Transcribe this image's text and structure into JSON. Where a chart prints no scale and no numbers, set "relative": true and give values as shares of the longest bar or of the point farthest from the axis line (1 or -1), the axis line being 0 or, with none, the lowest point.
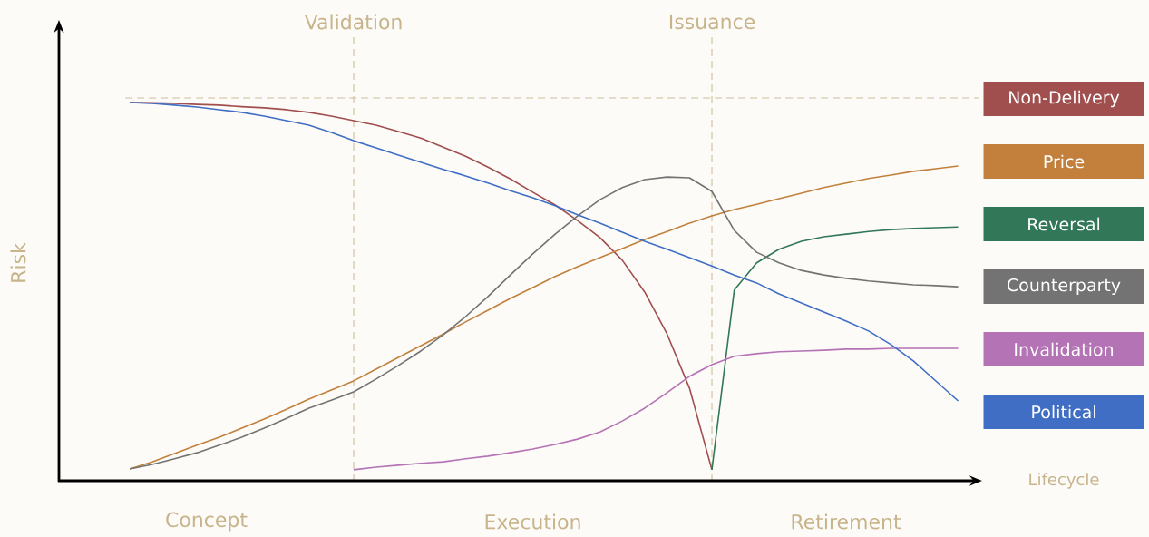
{
  "chart_data": {
    "type": "line",
    "relative": true,
    "xlabel": "Lifecycle",
    "ylabel": "Risk",
    "marker": "none",
    "categories": [
      null,
      null,
      null,
      null,
      null,
      null,
      null,
      null,
      null,
      null,
      null,
      null,
      null,
      null,
      null,
      null,
      null,
      null,
      null,
      null,
      null,
      null,
      null,
      null,
      null,
      null,
      null,
      null,
      null,
      null,
      null,
      null,
      null,
      null,
      null,
      null,
      null,
      null
    ],
    "ref_lines": [
      {
        "axis": "y",
        "value": 1.012,
        "color": "#cdbf9a",
        "line_style": "dashed"
      }
    ],
    "annotations": [
      "Validation",
      "Issuance",
      "Concept",
      "Execution",
      "Retirement"
    ],
    "series": [
      {
        "name": "Non-Delivery",
        "color": "#a04e4e",
        "values": [
          1.0,
          0.999,
          0.998,
          0.995,
          0.993,
          0.989,
          0.986,
          0.981,
          0.974,
          0.964,
          0.952,
          0.94,
          0.923,
          0.906,
          0.882,
          0.858,
          0.829,
          0.798,
          0.763,
          0.729,
          0.688,
          0.643,
          0.583,
          0.499,
          0.388,
          0.245,
          0.029,
          null,
          null,
          null,
          null,
          null,
          null,
          null,
          null,
          null,
          null,
          null
        ]
      },
      {
        "name": "Price",
        "color": "#c2803c",
        "values": [
          0.031,
          0.05,
          0.072,
          0.094,
          0.115,
          0.139,
          0.163,
          0.189,
          0.216,
          0.24,
          0.264,
          0.295,
          0.326,
          0.357,
          0.388,
          0.42,
          0.451,
          0.482,
          0.511,
          0.54,
          0.566,
          0.59,
          0.614,
          0.638,
          0.659,
          0.681,
          0.7,
          0.717,
          0.731,
          0.746,
          0.76,
          0.775,
          0.787,
          0.799,
          0.808,
          0.818,
          0.825,
          0.832
        ]
      },
      {
        "name": "Reversal",
        "color": "#327858",
        "values": [
          null,
          null,
          null,
          null,
          null,
          null,
          null,
          null,
          null,
          null,
          null,
          null,
          null,
          null,
          null,
          null,
          null,
          null,
          null,
          null,
          null,
          null,
          null,
          null,
          null,
          null,
          0.029,
          0.504,
          0.576,
          0.612,
          0.633,
          0.645,
          0.652,
          0.659,
          0.664,
          0.667,
          0.669,
          0.671
        ]
      },
      {
        "name": "Counterparty",
        "color": "#737373",
        "values": [
          0.031,
          0.043,
          0.058,
          0.074,
          0.094,
          0.115,
          0.139,
          0.165,
          0.192,
          0.213,
          0.235,
          0.269,
          0.305,
          0.343,
          0.386,
          0.434,
          0.487,
          0.544,
          0.6,
          0.652,
          0.7,
          0.743,
          0.775,
          0.796,
          0.803,
          0.801,
          0.765,
          0.662,
          0.604,
          0.576,
          0.556,
          0.544,
          0.535,
          0.528,
          0.523,
          0.518,
          0.516,
          0.513
        ]
      },
      {
        "name": "Invalidation",
        "color": "#b473b4",
        "values": [
          null,
          null,
          null,
          null,
          null,
          null,
          null,
          null,
          null,
          null,
          0.029,
          0.036,
          0.041,
          0.046,
          0.05,
          0.058,
          0.065,
          0.074,
          0.084,
          0.096,
          0.11,
          0.129,
          0.158,
          0.192,
          0.233,
          0.276,
          0.307,
          0.329,
          0.336,
          0.341,
          0.343,
          0.345,
          0.348,
          0.348,
          0.35,
          0.35,
          0.35,
          0.35
        ]
      },
      {
        "name": "Political",
        "color": "#3f6ec4",
        "values": [
          1.0,
          0.998,
          0.993,
          0.988,
          0.981,
          0.974,
          0.964,
          0.952,
          0.94,
          0.921,
          0.899,
          0.88,
          0.861,
          0.842,
          0.823,
          0.806,
          0.787,
          0.767,
          0.748,
          0.727,
          0.703,
          0.681,
          0.657,
          0.633,
          0.612,
          0.59,
          0.568,
          0.544,
          0.523,
          0.494,
          0.47,
          0.446,
          0.422,
          0.396,
          0.36,
          0.317,
          0.264,
          0.211
        ]
      }
    ]
  }
}
